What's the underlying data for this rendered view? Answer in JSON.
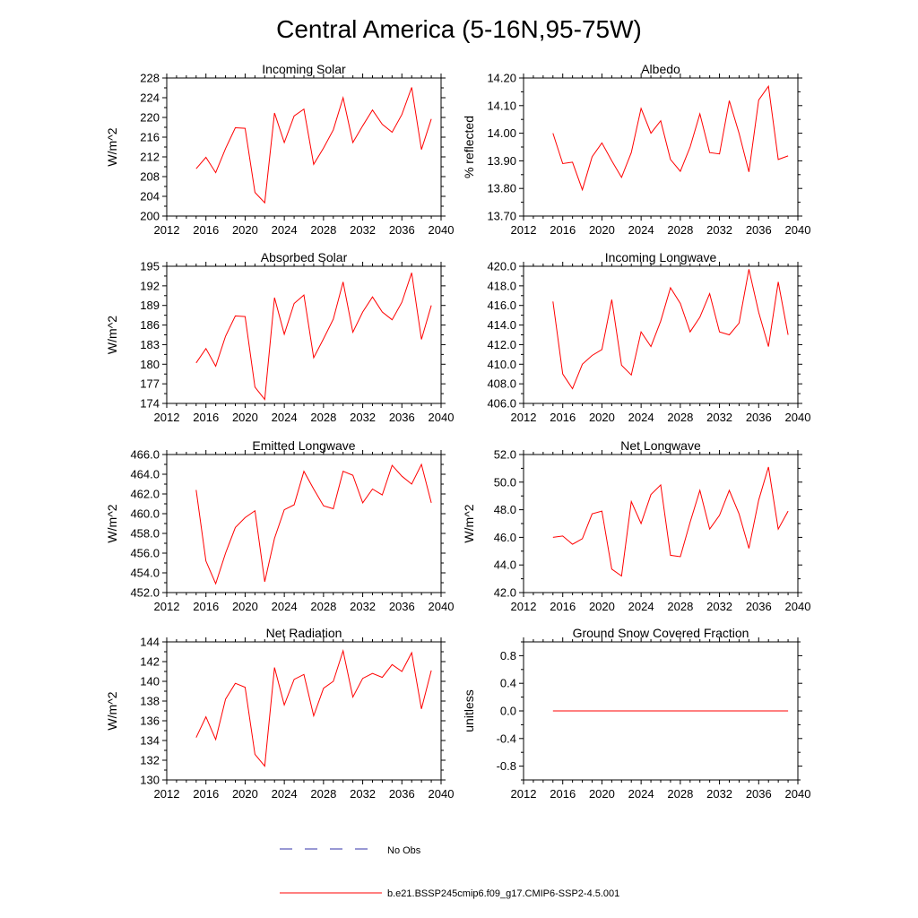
{
  "figure_title": "Central America (5-16N,95-75W)",
  "colors": {
    "model_line": "#ff0000",
    "obs_line": "#3333aa",
    "axis": "#000000"
  },
  "legend": {
    "obs_label": "No Obs",
    "model_label": "b.e21.BSSP245cmip6.f09_g17.CMIP6-SSP2-4.5.001"
  },
  "chart_data": [
    {
      "type": "line",
      "title": "Incoming Solar",
      "ylabel": "W/m^2",
      "xlim": [
        2012,
        2040
      ],
      "ylim": [
        200,
        228
      ],
      "xticks": [
        2012,
        2016,
        2020,
        2024,
        2028,
        2032,
        2036,
        2040
      ],
      "xtick_labels": [
        "2012",
        "2016",
        "2020",
        "2024",
        "2028",
        "2032",
        "2036",
        "2040"
      ],
      "yticks": [
        200,
        204,
        208,
        212,
        216,
        220,
        224,
        228
      ],
      "ytick_labels": [
        "200",
        "204",
        "208",
        "212",
        "216",
        "220",
        "224",
        "228"
      ],
      "x": [
        2015,
        2016,
        2017,
        2018,
        2019,
        2020,
        2021,
        2022,
        2023,
        2024,
        2025,
        2026,
        2027,
        2028,
        2029,
        2030,
        2031,
        2032,
        2033,
        2034,
        2035,
        2036,
        2037,
        2038,
        2039
      ],
      "values": [
        209.6,
        211.9,
        208.8,
        213.7,
        217.9,
        217.8,
        204.8,
        202.7,
        220.9,
        214.9,
        220.3,
        221.7,
        210.5,
        213.8,
        217.5,
        224.0,
        214.9,
        218.3,
        221.5,
        218.6,
        217.0,
        220.6,
        226.1,
        213.5,
        219.7
      ]
    },
    {
      "type": "line",
      "title": "Albedo",
      "ylabel": "% reflected",
      "xlim": [
        2012,
        2040
      ],
      "ylim": [
        13.7,
        14.2
      ],
      "xticks": [
        2012,
        2016,
        2020,
        2024,
        2028,
        2032,
        2036,
        2040
      ],
      "xtick_labels": [
        "2012",
        "2016",
        "2020",
        "2024",
        "2028",
        "2032",
        "2036",
        "2040"
      ],
      "yticks": [
        13.7,
        13.8,
        13.9,
        14.0,
        14.1,
        14.2
      ],
      "ytick_labels": [
        "13.70",
        "13.80",
        "13.90",
        "14.00",
        "14.10",
        "14.20"
      ],
      "x": [
        2015,
        2016,
        2017,
        2018,
        2019,
        2020,
        2021,
        2022,
        2023,
        2024,
        2025,
        2026,
        2027,
        2028,
        2029,
        2030,
        2031,
        2032,
        2033,
        2034,
        2035,
        2036,
        2037,
        2038,
        2039
      ],
      "values": [
        14.0,
        13.89,
        13.895,
        13.795,
        13.915,
        13.965,
        13.9,
        13.84,
        13.93,
        14.09,
        14.0,
        14.045,
        13.905,
        13.862,
        13.95,
        14.07,
        13.93,
        13.925,
        14.118,
        14.0,
        13.86,
        14.12,
        14.17,
        13.905,
        13.918
      ]
    },
    {
      "type": "line",
      "title": "Absorbed Solar",
      "ylabel": "W/m^2",
      "xlim": [
        2012,
        2040
      ],
      "ylim": [
        174,
        195
      ],
      "xticks": [
        2012,
        2016,
        2020,
        2024,
        2028,
        2032,
        2036,
        2040
      ],
      "xtick_labels": [
        "2012",
        "2016",
        "2020",
        "2024",
        "2028",
        "2032",
        "2036",
        "2040"
      ],
      "yticks": [
        174,
        177,
        180,
        183,
        186,
        189,
        192,
        195
      ],
      "ytick_labels": [
        "174",
        "177",
        "180",
        "183",
        "186",
        "189",
        "192",
        "195"
      ],
      "x": [
        2015,
        2016,
        2017,
        2018,
        2019,
        2020,
        2021,
        2022,
        2023,
        2024,
        2025,
        2026,
        2027,
        2028,
        2029,
        2030,
        2031,
        2032,
        2033,
        2034,
        2035,
        2036,
        2037,
        2038,
        2039
      ],
      "values": [
        180.2,
        182.4,
        179.7,
        184.3,
        187.4,
        187.3,
        176.5,
        174.6,
        190.2,
        184.6,
        189.3,
        190.6,
        181.0,
        183.9,
        186.9,
        192.6,
        184.9,
        188.0,
        190.3,
        188.0,
        186.8,
        189.5,
        194.0,
        183.8,
        189.0
      ]
    },
    {
      "type": "line",
      "title": "Incoming Longwave",
      "ylabel": "",
      "xlim": [
        2012,
        2040
      ],
      "ylim": [
        406,
        420
      ],
      "xticks": [
        2012,
        2016,
        2020,
        2024,
        2028,
        2032,
        2036,
        2040
      ],
      "xtick_labels": [
        "2012",
        "2016",
        "2020",
        "2024",
        "2028",
        "2032",
        "2036",
        "2040"
      ],
      "yticks": [
        406,
        408,
        410,
        412,
        414,
        416,
        418,
        420
      ],
      "ytick_labels": [
        "406.0",
        "408.0",
        "410.0",
        "412.0",
        "414.0",
        "416.0",
        "418.0",
        "420.0"
      ],
      "x": [
        2015,
        2016,
        2017,
        2018,
        2019,
        2020,
        2021,
        2022,
        2023,
        2024,
        2025,
        2026,
        2027,
        2028,
        2029,
        2030,
        2031,
        2032,
        2033,
        2034,
        2035,
        2036,
        2037,
        2038,
        2039
      ],
      "values": [
        416.4,
        409.0,
        407.5,
        410.0,
        410.9,
        411.5,
        416.6,
        409.9,
        408.9,
        413.3,
        411.8,
        414.4,
        417.8,
        416.2,
        413.3,
        414.8,
        417.2,
        413.3,
        413.0,
        414.2,
        419.7,
        415.3,
        411.8,
        418.4,
        413.0
      ]
    },
    {
      "type": "line",
      "title": "Emitted Longwave",
      "ylabel": "W/m^2",
      "xlim": [
        2012,
        2040
      ],
      "ylim": [
        452,
        466
      ],
      "xticks": [
        2012,
        2016,
        2020,
        2024,
        2028,
        2032,
        2036,
        2040
      ],
      "xtick_labels": [
        "2012",
        "2016",
        "2020",
        "2024",
        "2028",
        "2032",
        "2036",
        "2040"
      ],
      "yticks": [
        452,
        454,
        456,
        458,
        460,
        462,
        464,
        466
      ],
      "ytick_labels": [
        "452.0",
        "454.0",
        "456.0",
        "458.0",
        "460.0",
        "462.0",
        "464.0",
        "466.0"
      ],
      "x": [
        2015,
        2016,
        2017,
        2018,
        2019,
        2020,
        2021,
        2022,
        2023,
        2024,
        2025,
        2026,
        2027,
        2028,
        2029,
        2030,
        2031,
        2032,
        2033,
        2034,
        2035,
        2036,
        2037,
        2038,
        2039
      ],
      "values": [
        462.4,
        455.2,
        452.9,
        456.0,
        458.6,
        459.6,
        460.3,
        453.1,
        457.5,
        460.4,
        460.9,
        464.3,
        462.5,
        460.8,
        460.5,
        464.3,
        463.9,
        461.1,
        462.5,
        461.9,
        464.9,
        463.8,
        463.0,
        465.0,
        461.1
      ]
    },
    {
      "type": "line",
      "title": "Net Longwave",
      "ylabel": "W/m^2",
      "xlim": [
        2012,
        2040
      ],
      "ylim": [
        42,
        52
      ],
      "xticks": [
        2012,
        2016,
        2020,
        2024,
        2028,
        2032,
        2036,
        2040
      ],
      "xtick_labels": [
        "2012",
        "2016",
        "2020",
        "2024",
        "2028",
        "2032",
        "2036",
        "2040"
      ],
      "yticks": [
        42,
        44,
        46,
        48,
        50,
        52
      ],
      "ytick_labels": [
        "42.0",
        "44.0",
        "46.0",
        "48.0",
        "50.0",
        "52.0"
      ],
      "x": [
        2015,
        2016,
        2017,
        2018,
        2019,
        2020,
        2021,
        2022,
        2023,
        2024,
        2025,
        2026,
        2027,
        2028,
        2029,
        2030,
        2031,
        2032,
        2033,
        2034,
        2035,
        2036,
        2037,
        2038,
        2039
      ],
      "values": [
        46.0,
        46.1,
        45.5,
        45.9,
        47.7,
        47.9,
        43.7,
        43.2,
        48.6,
        47.0,
        49.1,
        49.8,
        44.7,
        44.6,
        47.1,
        49.4,
        46.6,
        47.6,
        49.4,
        47.7,
        45.2,
        48.7,
        51.1,
        46.6,
        47.9
      ]
    },
    {
      "type": "line",
      "title": "Net Radiation",
      "ylabel": "W/m^2",
      "xlim": [
        2012,
        2040
      ],
      "ylim": [
        130,
        144
      ],
      "xticks": [
        2012,
        2016,
        2020,
        2024,
        2028,
        2032,
        2036,
        2040
      ],
      "xtick_labels": [
        "2012",
        "2016",
        "2020",
        "2024",
        "2028",
        "2032",
        "2036",
        "2040"
      ],
      "yticks": [
        130,
        132,
        134,
        136,
        138,
        140,
        142,
        144
      ],
      "ytick_labels": [
        "130",
        "132",
        "134",
        "136",
        "138",
        "140",
        "142",
        "144"
      ],
      "x": [
        2015,
        2016,
        2017,
        2018,
        2019,
        2020,
        2021,
        2022,
        2023,
        2024,
        2025,
        2026,
        2027,
        2028,
        2029,
        2030,
        2031,
        2032,
        2033,
        2034,
        2035,
        2036,
        2037,
        2038,
        2039
      ],
      "values": [
        134.3,
        136.4,
        134.1,
        138.2,
        139.8,
        139.4,
        132.6,
        131.4,
        141.4,
        137.6,
        140.2,
        140.7,
        136.5,
        139.3,
        140.0,
        143.1,
        138.4,
        140.3,
        140.8,
        140.4,
        141.7,
        141.0,
        142.9,
        137.2,
        141.1
      ]
    },
    {
      "type": "line",
      "title": "Ground Snow Covered Fraction",
      "ylabel": "unitless",
      "xlim": [
        2012,
        2040
      ],
      "ylim": [
        -1.0,
        1.0
      ],
      "xticks": [
        2012,
        2016,
        2020,
        2024,
        2028,
        2032,
        2036,
        2040
      ],
      "xtick_labels": [
        "2012",
        "2016",
        "2020",
        "2024",
        "2028",
        "2032",
        "2036",
        "2040"
      ],
      "yticks": [
        -0.8,
        -0.4,
        0.0,
        0.4,
        0.8
      ],
      "ytick_labels": [
        "-0.8",
        "-0.4",
        "0.0",
        "0.4",
        "0.8"
      ],
      "x": [
        2015,
        2016,
        2017,
        2018,
        2019,
        2020,
        2021,
        2022,
        2023,
        2024,
        2025,
        2026,
        2027,
        2028,
        2029,
        2030,
        2031,
        2032,
        2033,
        2034,
        2035,
        2036,
        2037,
        2038,
        2039
      ],
      "values": [
        0,
        0,
        0,
        0,
        0,
        0,
        0,
        0,
        0,
        0,
        0,
        0,
        0,
        0,
        0,
        0,
        0,
        0,
        0,
        0,
        0,
        0,
        0,
        0,
        0
      ]
    }
  ]
}
